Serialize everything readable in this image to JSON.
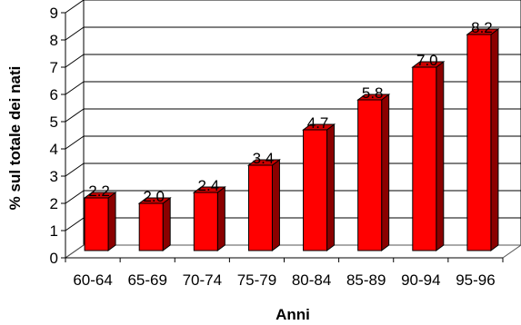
{
  "chart_data": {
    "type": "bar",
    "categories": [
      "60-64",
      "65-69",
      "70-74",
      "75-79",
      "80-84",
      "85-89",
      "90-94",
      "95-96"
    ],
    "values": [
      2.2,
      2.0,
      2.4,
      3.4,
      4.7,
      5.8,
      7.0,
      8.2
    ],
    "data_labels": [
      "2.2",
      "2.0",
      "2.4",
      "3.4",
      "4.7",
      "5.8",
      "7.0",
      "8.2"
    ],
    "xlabel": "Anni",
    "ylabel": "% sul totale dei nati",
    "ylim": [
      0,
      9
    ],
    "yticks": [
      "0",
      "1",
      "2",
      "3",
      "4",
      "5",
      "6",
      "7",
      "8",
      "9"
    ],
    "grid": true,
    "legend": "none",
    "colors": {
      "bar_front": "#FF0000",
      "bar_side": "#8B0000",
      "bar_top": "#CC0000",
      "grid": "#000000"
    }
  }
}
